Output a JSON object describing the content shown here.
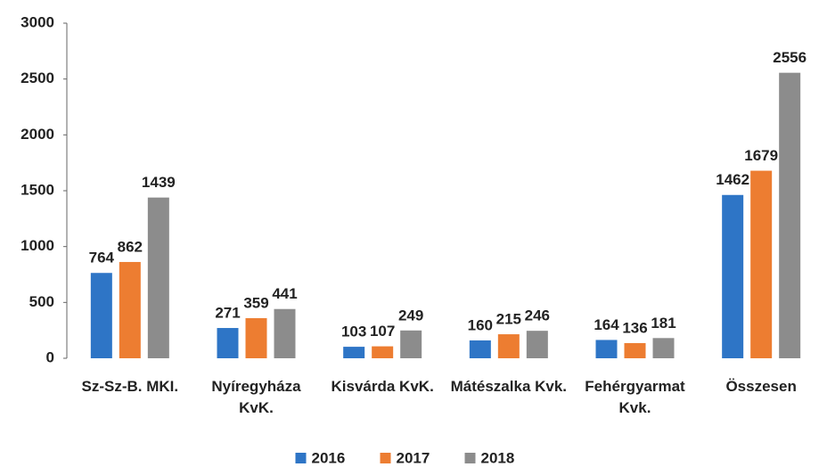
{
  "chart_data": {
    "type": "bar",
    "categories": [
      "Sz-Sz-B. MKI.",
      "Nyíregyháza KvK.",
      "Kisvárda KvK.",
      "Mátészalka Kvk.",
      "Fehérgyarmat Kvk.",
      "Összesen"
    ],
    "series": [
      {
        "name": "2016",
        "color": "#2e75c6",
        "values": [
          764,
          271,
          103,
          160,
          164,
          1462
        ]
      },
      {
        "name": "2017",
        "color": "#ed7d31",
        "values": [
          862,
          359,
          107,
          215,
          136,
          1679
        ]
      },
      {
        "name": "2018",
        "color": "#8c8c8c",
        "values": [
          1439,
          441,
          249,
          246,
          181,
          2556
        ]
      }
    ],
    "ylim": [
      0,
      3000
    ],
    "yticks": [
      0,
      500,
      1000,
      1500,
      2000,
      2500,
      3000
    ],
    "grid": false,
    "legend": "bottom"
  }
}
